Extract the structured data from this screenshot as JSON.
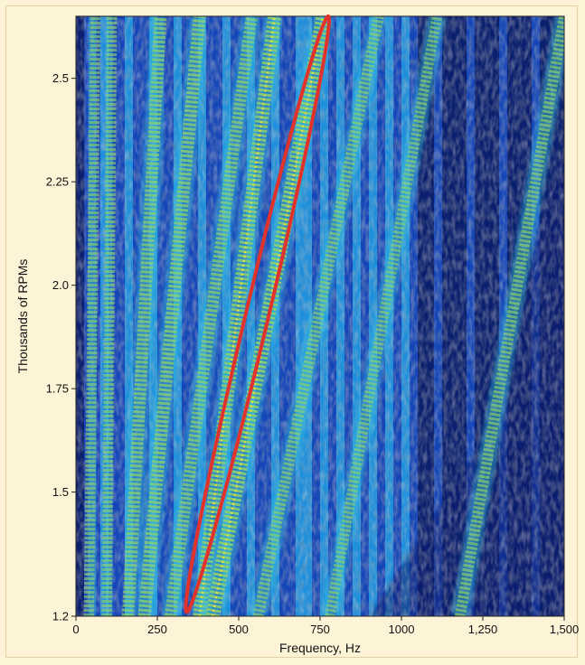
{
  "chart_data": {
    "type": "heatmap",
    "title": "",
    "xlabel": "Frequency, Hz",
    "ylabel": "Thousands of RPMs",
    "xlim": [
      0,
      1500
    ],
    "ylim": [
      1.2,
      2.65
    ],
    "x_ticks": [
      0,
      250,
      500,
      750,
      1000,
      1250,
      1500
    ],
    "x_tick_labels": [
      "0",
      "250",
      "500",
      "750",
      "1000",
      "1,250",
      "1,500"
    ],
    "y_ticks": [
      1.2,
      1.5,
      1.75,
      2.0,
      2.25,
      2.5
    ],
    "y_tick_labels": [
      "1.2",
      "1.5",
      "1.75",
      "2.0",
      "2.25",
      "2.5"
    ],
    "colormap": [
      "#0a1f6e",
      "#1546b8",
      "#1f8fdc",
      "#35c4e0",
      "#8fd36a",
      "#e6e23a"
    ],
    "orders": [
      {
        "x_at_ymin": 40,
        "x_at_ymax": 60,
        "level": 0.55
      },
      {
        "x_at_ymin": 95,
        "x_at_ymax": 110,
        "level": 0.55
      },
      {
        "x_at_ymin": 160,
        "x_at_ymax": 260,
        "level": 0.75
      },
      {
        "x_at_ymin": 210,
        "x_at_ymax": 380,
        "level": 0.8
      },
      {
        "x_at_ymin": 290,
        "x_at_ymax": 540,
        "level": 0.7
      },
      {
        "x_at_ymin": 380,
        "x_at_ymax": 610,
        "level": 0.9
      },
      {
        "x_at_ymin": 420,
        "x_at_ymax": 760,
        "level": 1.0
      },
      {
        "x_at_ymin": 560,
        "x_at_ymax": 930,
        "level": 0.6
      },
      {
        "x_at_ymin": 780,
        "x_at_ymax": 1110,
        "level": 0.55
      },
      {
        "x_at_ymin": 1180,
        "x_at_ymax": 1500,
        "level": 0.6
      }
    ],
    "annotation": {
      "type": "ellipse",
      "color": "#e0332b",
      "from": {
        "x": 340,
        "y": 1.21
      },
      "to": {
        "x": 775,
        "y": 2.65
      },
      "half_width_hz": 70
    }
  }
}
